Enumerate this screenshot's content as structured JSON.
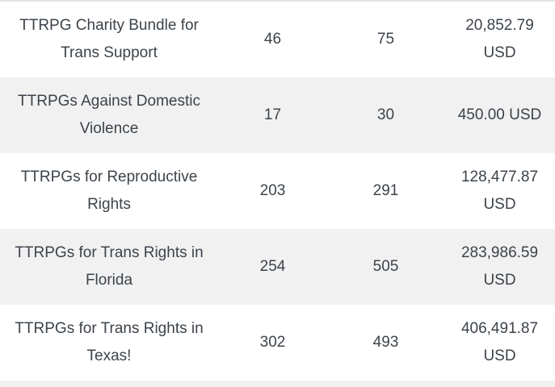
{
  "colors": {
    "text": "#3c434a",
    "row_bg": "#ffffff",
    "row_alt_bg": "#f1f1f2",
    "border_top": "#e2e4e7"
  },
  "table": {
    "rows": [
      {
        "name_lines": [
          "TTRPG Charity Bundle for",
          "Trans Support"
        ],
        "value1": "46",
        "value2": "75",
        "amount_lines": [
          "20,852.79",
          "USD"
        ]
      },
      {
        "name_lines": [
          "TTRPGs Against Domestic",
          "Violence"
        ],
        "value1": "17",
        "value2": "30",
        "amount_lines": [
          "450.00 USD"
        ]
      },
      {
        "name_lines": [
          "TTRPGs for Reproductive",
          "Rights"
        ],
        "value1": "203",
        "value2": "291",
        "amount_lines": [
          "128,477.87",
          "USD"
        ]
      },
      {
        "name_lines": [
          "TTRPGs for Trans Rights in",
          "Florida"
        ],
        "value1": "254",
        "value2": "505",
        "amount_lines": [
          "283,986.59",
          "USD"
        ]
      },
      {
        "name_lines": [
          "TTRPGs for Trans Rights in",
          "Texas!"
        ],
        "value1": "302",
        "value2": "493",
        "amount_lines": [
          "406,491.87",
          "USD"
        ]
      }
    ]
  }
}
